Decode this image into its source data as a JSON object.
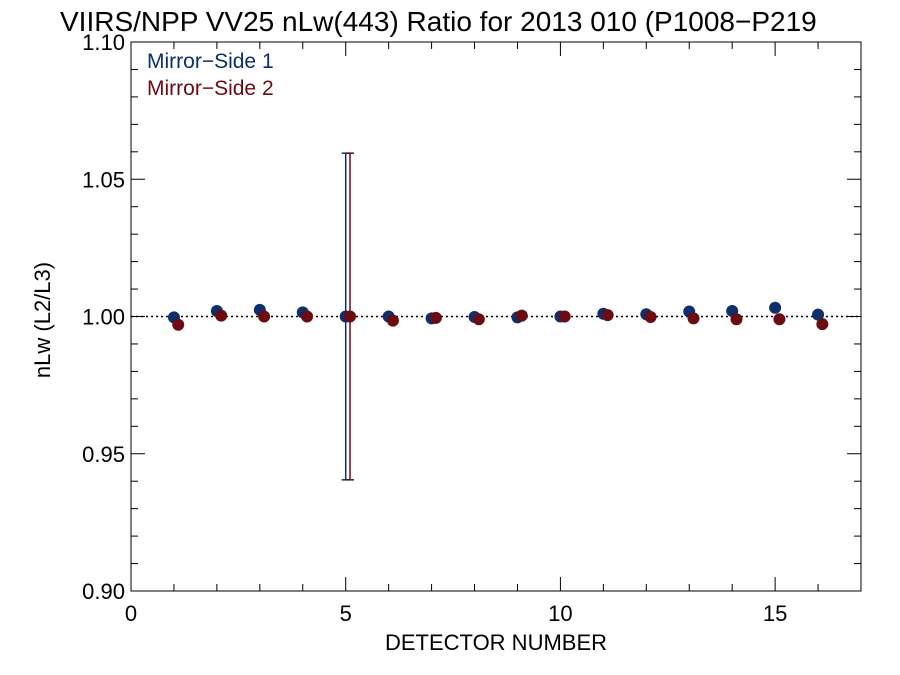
{
  "chart_data": {
    "type": "scatter",
    "title": "VIIRS/NPP VV25 nLw(443) Ratio for 2013 010 (P1008−P219",
    "xlabel": "DETECTOR NUMBER",
    "ylabel": "nLw (L2/L3)",
    "xlim": [
      0,
      17
    ],
    "ylim": [
      0.9,
      1.1
    ],
    "xticks": [
      0,
      5,
      10,
      15
    ],
    "xtick_labels": [
      "0",
      "5",
      "10",
      "15"
    ],
    "yticks": [
      0.9,
      0.95,
      1.0,
      1.05,
      1.1
    ],
    "ytick_labels": [
      "0.90",
      "0.95",
      "1.00",
      "1.05",
      "1.10"
    ],
    "reference_line": 1.0,
    "grid": false,
    "legend_position": "top-left",
    "series": [
      {
        "name": "Mirror−Side 1",
        "color": "#0d2f6b",
        "x": [
          1,
          2,
          3,
          4,
          5,
          6,
          7,
          8,
          9,
          10,
          11,
          12,
          13,
          14,
          15,
          16
        ],
        "values": [
          0.9997,
          1.002,
          1.0024,
          1.0015,
          1.0,
          1.0,
          0.9993,
          0.9998,
          0.9997,
          1.0,
          1.001,
          1.0008,
          1.0018,
          1.002,
          1.0032,
          1.0007
        ],
        "error_bar": {
          "x": 5,
          "low": 0.9405,
          "high": 1.0595
        }
      },
      {
        "name": "Mirror−Side 2",
        "color": "#6b0b12",
        "x": [
          1.1,
          2.1,
          3.1,
          4.1,
          5.1,
          6.1,
          7.1,
          8.1,
          9.1,
          10.1,
          11.1,
          12.1,
          13.1,
          14.1,
          15.1,
          16.1
        ],
        "values": [
          0.997,
          1.0003,
          1.0,
          1.0,
          1.0,
          0.9985,
          0.9995,
          0.999,
          1.0003,
          1.0,
          1.0005,
          0.9998,
          0.9993,
          0.999,
          0.999,
          0.9972
        ],
        "error_bar": {
          "x": 5.1,
          "low": 0.9405,
          "high": 1.0595
        }
      }
    ]
  }
}
